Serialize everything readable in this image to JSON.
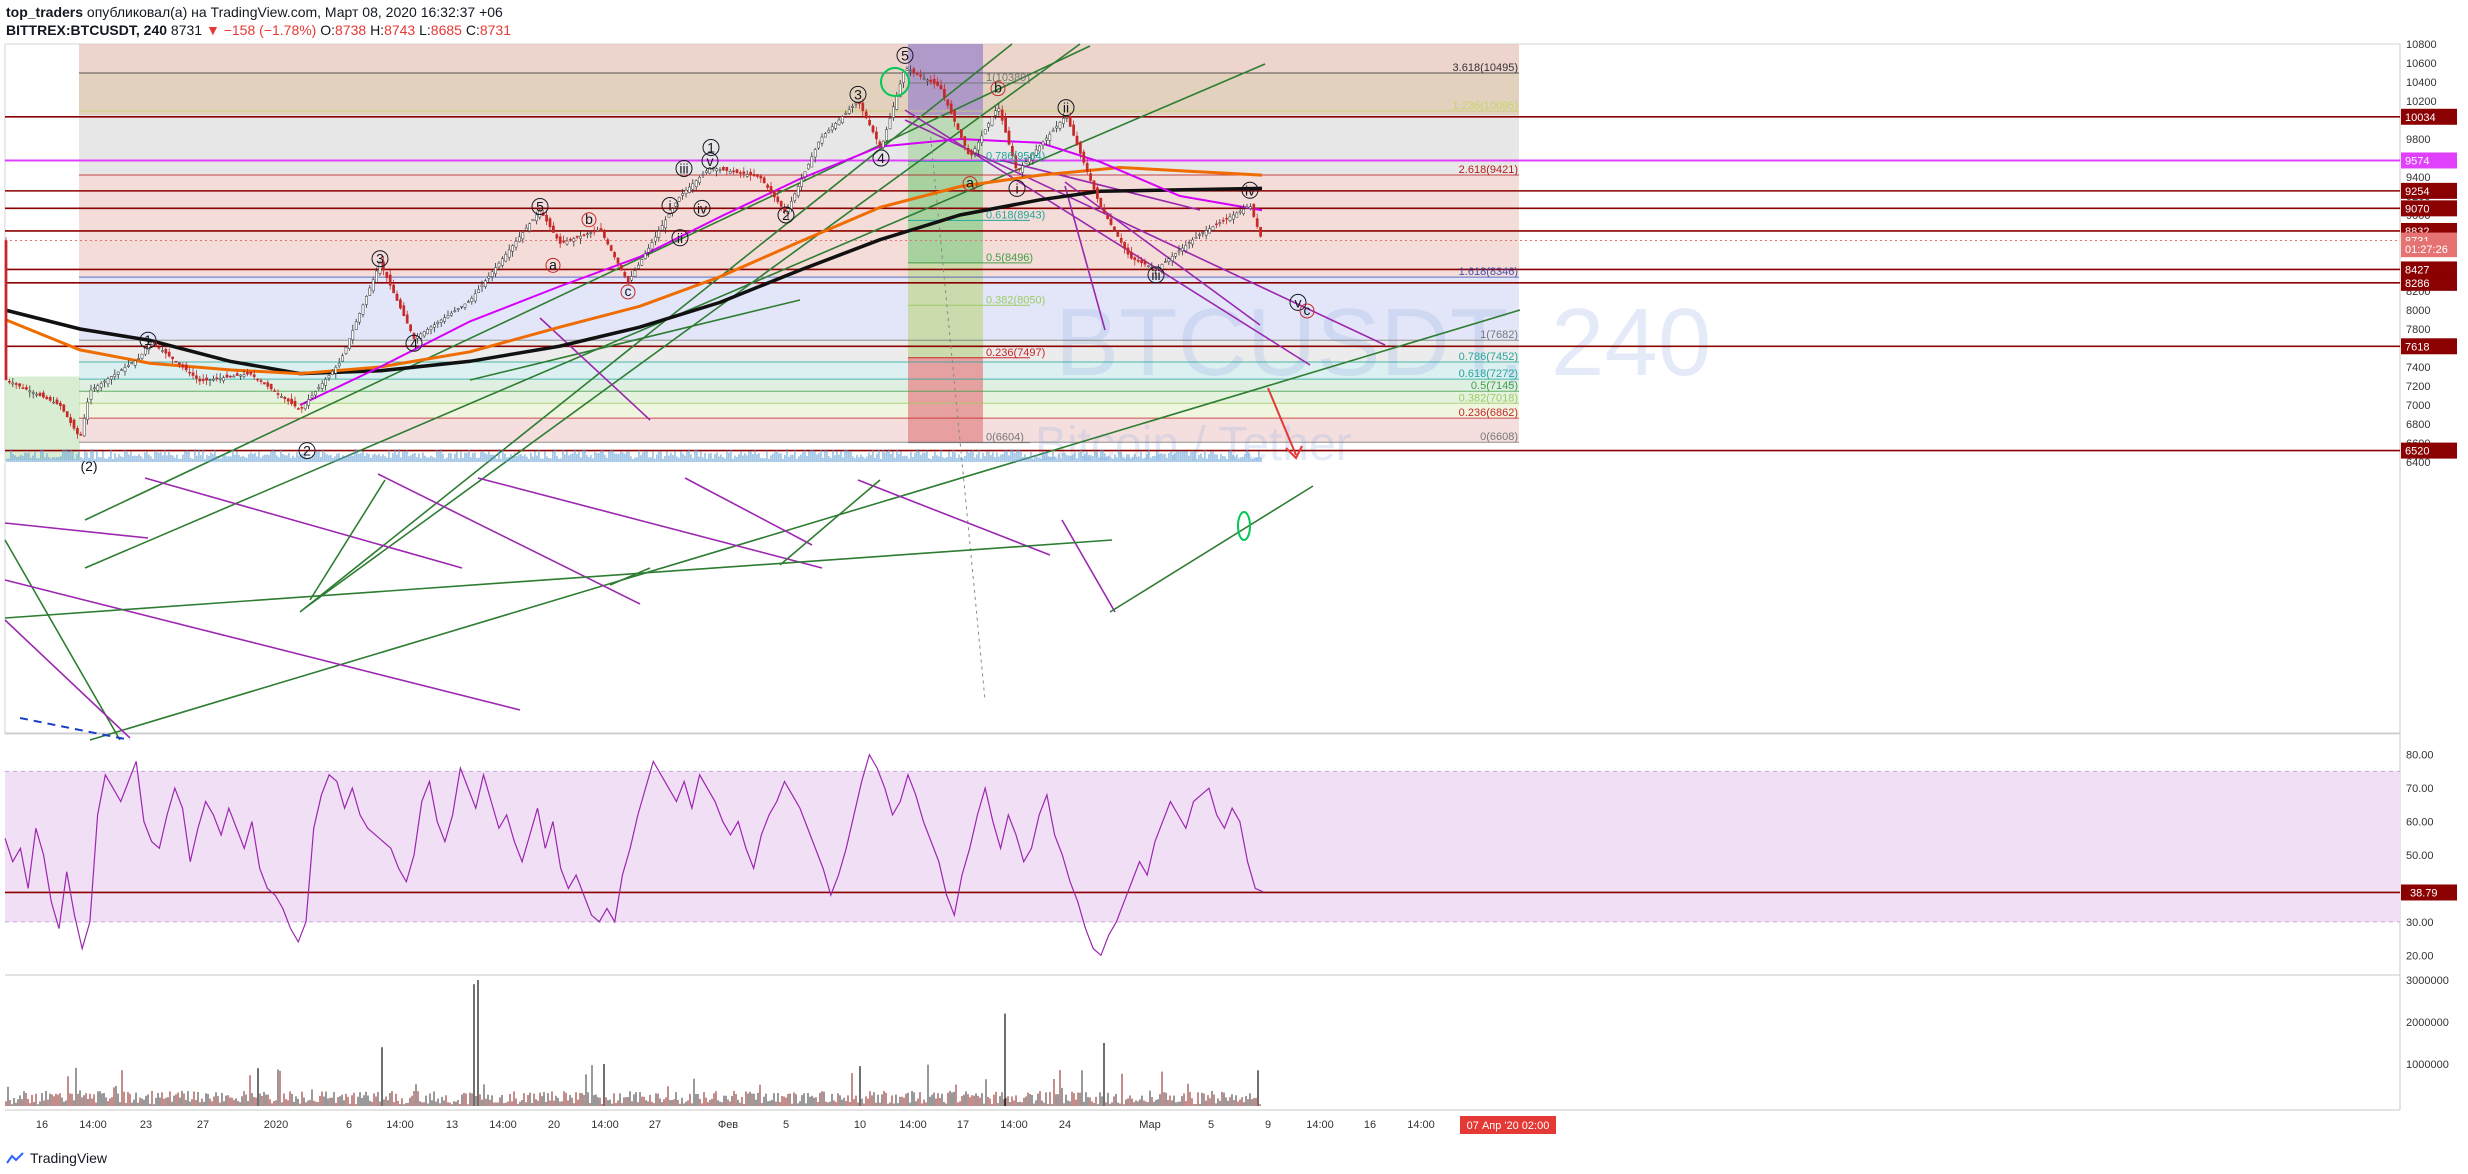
{
  "header": {
    "author": "top_traders",
    "published_text": "опубликовал(а) на TradingView.com, Март 08, 2020 16:32:37 +06",
    "symbol": "BITTREX:BTCUSDT, 240",
    "last": "8731",
    "change": "▼ −158 (−1.78%)",
    "o_label": "O:",
    "o": "8738",
    "h_label": "H:",
    "h": "8743",
    "l_label": "L:",
    "l": "8685",
    "c_label": "C:",
    "c": "8731"
  },
  "watermark": {
    "symbol": "BTCUSDT, 240",
    "name": "Bitcoin / Tether"
  },
  "brand": "TradingView",
  "chart_data": {
    "type": "candlestick",
    "price_axis": {
      "range": [
        6350,
        10950
      ],
      "ticks": [
        6400,
        6600,
        6800,
        7000,
        7200,
        7400,
        7600,
        7800,
        8000,
        8200,
        8400,
        8600,
        8800,
        9000,
        9200,
        9400,
        9600,
        9800,
        10000,
        10200,
        10400,
        10600,
        10800
      ]
    },
    "time_axis": {
      "labels": [
        "16",
        "14:00",
        "23",
        "27",
        "2020",
        "6",
        "14:00",
        "13",
        "14:00",
        "20",
        "14:00",
        "27",
        "Фев",
        "5",
        "10",
        "14:00",
        "17",
        "14:00",
        "24",
        "Мар",
        "5",
        "9",
        "14:00",
        "16",
        "14:00"
      ],
      "date_badge": "07 Апр '20  02:00"
    },
    "price_badges": [
      {
        "value": "10034",
        "color": "#8b0000"
      },
      {
        "value": "9574",
        "color": "#e040fb"
      },
      {
        "value": "9254",
        "color": "#8b0000"
      },
      {
        "value": "9070",
        "color": "#8b0000"
      },
      {
        "value": "8832",
        "color": "#8b0000"
      },
      {
        "value": "8731",
        "color": "#e57373"
      },
      {
        "value": "01:27:26",
        "color": "#e57373"
      },
      {
        "value": "8427",
        "color": "#8b0000"
      },
      {
        "value": "8286",
        "color": "#8b0000"
      },
      {
        "value": "7618",
        "color": "#8b0000"
      },
      {
        "value": "6520",
        "color": "#8b0000"
      }
    ],
    "fib_right": [
      {
        "label": "3.618(10495)",
        "price": 10495,
        "color": "#333333"
      },
      {
        "label": "1.236(10095)",
        "price": 10095,
        "color": "#c7d36b"
      },
      {
        "label": "2.618(9421)",
        "price": 9421,
        "color": "#b71c1c"
      },
      {
        "label": "1.618(8346)",
        "price": 8346,
        "color": "#3f51b5"
      },
      {
        "label": "1(7682)",
        "price": 7682,
        "color": "#777777"
      },
      {
        "label": "0.786(7452)",
        "price": 7452,
        "color": "#26a69a"
      },
      {
        "label": "0.618(7272)",
        "price": 7272,
        "color": "#26a69a"
      },
      {
        "label": "0.5(7145)",
        "price": 7145,
        "color": "#43a047"
      },
      {
        "label": "0.382(7018)",
        "price": 7018,
        "color": "#9ccc65"
      },
      {
        "label": "0.236(6862)",
        "price": 6862,
        "color": "#c62828"
      },
      {
        "label": "0(6608)",
        "price": 6608,
        "color": "#777777"
      }
    ],
    "fib_mid": [
      {
        "label": "1(10389)",
        "price": 10389,
        "color": "#777777"
      },
      {
        "label": "0.786(9564)",
        "price": 9564,
        "color": "#26a69a"
      },
      {
        "label": "0.618(8943)",
        "price": 8943,
        "color": "#26a69a"
      },
      {
        "label": "0.5(8496)",
        "price": 8496,
        "color": "#43a047"
      },
      {
        "label": "0.382(8050)",
        "price": 8050,
        "color": "#9ccc65"
      },
      {
        "label": "0.236(7497)",
        "price": 7497,
        "color": "#c62828"
      },
      {
        "label": "0(6604)",
        "price": 6604,
        "color": "#777777"
      }
    ],
    "wave_labels": [
      {
        "label": "1",
        "x": 148,
        "price": 7682,
        "style": "circle"
      },
      {
        "label": "2",
        "x": 307,
        "price": 6520,
        "style": "circle"
      },
      {
        "label": "3",
        "x": 380,
        "price": 8540,
        "style": "circle"
      },
      {
        "label": "4",
        "x": 414,
        "price": 7650,
        "style": "circle"
      },
      {
        "label": "5",
        "x": 540,
        "price": 9090,
        "style": "circle"
      },
      {
        "label": "a",
        "x": 553,
        "price": 8470,
        "style": "red"
      },
      {
        "label": "b",
        "x": 589,
        "price": 8950,
        "style": "red"
      },
      {
        "label": "c",
        "x": 628,
        "price": 8190,
        "style": "red"
      },
      {
        "label": "i",
        "x": 670,
        "price": 9100,
        "style": "circle"
      },
      {
        "label": "ii",
        "x": 680,
        "price": 8760,
        "style": "circle"
      },
      {
        "label": "iii",
        "x": 684,
        "price": 9490,
        "style": "circle"
      },
      {
        "label": "iv",
        "x": 702,
        "price": 9070,
        "style": "circle"
      },
      {
        "label": "1",
        "x": 711,
        "price": 9710,
        "style": "circle"
      },
      {
        "label": "v",
        "x": 710,
        "price": 9570,
        "style": "circle"
      },
      {
        "label": "2",
        "x": 786,
        "price": 9000,
        "style": "circle"
      },
      {
        "label": "3",
        "x": 858,
        "price": 10270,
        "style": "circle"
      },
      {
        "label": "4",
        "x": 881,
        "price": 9600,
        "style": "circle"
      },
      {
        "label": "5",
        "x": 905,
        "price": 10680,
        "style": "circle"
      },
      {
        "label": "b",
        "x": 998,
        "price": 10330,
        "style": "red"
      },
      {
        "label": "a",
        "x": 970,
        "price": 9330,
        "style": "red"
      },
      {
        "label": "ii",
        "x": 1066,
        "price": 10130,
        "style": "circle"
      },
      {
        "label": "i",
        "x": 1017,
        "price": 9280,
        "style": "circle"
      },
      {
        "label": "iv",
        "x": 1250,
        "price": 9260,
        "style": "circle"
      },
      {
        "label": "iii",
        "x": 1156,
        "price": 8370,
        "style": "circle"
      },
      {
        "label": "v",
        "x": 1298,
        "price": 8080,
        "style": "circle"
      },
      {
        "label": "c",
        "x": 1307,
        "price": 7990,
        "style": "red"
      },
      {
        "label": "(2)",
        "x": 89,
        "price": 6360,
        "style": "plain"
      }
    ],
    "rsi": {
      "range": [
        15,
        85
      ],
      "ticks": [
        20,
        30,
        40,
        50,
        60,
        70,
        80
      ],
      "overbought": 75,
      "oversold": 30,
      "level_badge": "38.79",
      "values": [
        55,
        48,
        52,
        40,
        58,
        50,
        36,
        28,
        45,
        32,
        22,
        30,
        62,
        74,
        70,
        66,
        72,
        78,
        60,
        54,
        52,
        62,
        70,
        64,
        48,
        58,
        66,
        62,
        56,
        64,
        58,
        52,
        60,
        46,
        40,
        38,
        34,
        28,
        24,
        30,
        58,
        68,
        74,
        72,
        64,
        70,
        62,
        58,
        56,
        54,
        52,
        46,
        42,
        50,
        66,
        72,
        60,
        54,
        62,
        76,
        70,
        64,
        74,
        66,
        58,
        62,
        54,
        48,
        56,
        64,
        52,
        60,
        46,
        40,
        44,
        38,
        32,
        30,
        34,
        30,
        44,
        52,
        62,
        70,
        78,
        74,
        70,
        66,
        72,
        64,
        74,
        70,
        66,
        60,
        56,
        60,
        52,
        46,
        56,
        62,
        66,
        72,
        68,
        64,
        58,
        52,
        46,
        38,
        44,
        52,
        62,
        72,
        80,
        76,
        70,
        62,
        66,
        74,
        68,
        60,
        54,
        48,
        38,
        32,
        44,
        52,
        62,
        70,
        60,
        52,
        62,
        56,
        48,
        52,
        62,
        68,
        56,
        50,
        42,
        36,
        28,
        22,
        20,
        26,
        30,
        36,
        42,
        48,
        44,
        54,
        60,
        66,
        62,
        58,
        66,
        68,
        70,
        62,
        58,
        64,
        60,
        48,
        40,
        39
      ]
    },
    "volume": {
      "range": [
        0,
        3000000
      ],
      "ticks": [
        1000000,
        2000000,
        3000000
      ],
      "ticks_label": [
        "1000000",
        "2000000",
        "3000000"
      ],
      "spikes": [
        [
          474,
          2900000
        ],
        [
          478,
          3000000
        ],
        [
          1005,
          2200000
        ],
        [
          258,
          900000
        ],
        [
          382,
          1400000
        ],
        [
          604,
          1000000
        ],
        [
          860,
          950000
        ],
        [
          1104,
          1500000
        ],
        [
          1258,
          850000
        ]
      ]
    }
  }
}
